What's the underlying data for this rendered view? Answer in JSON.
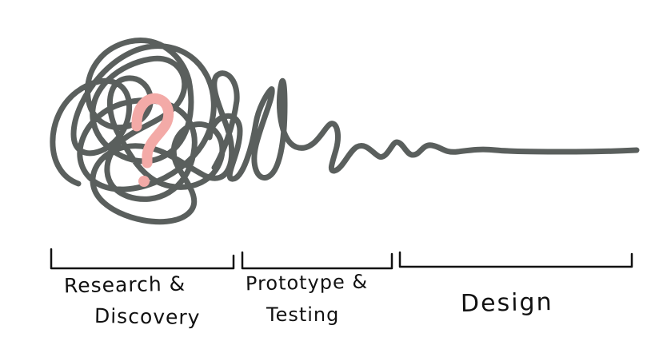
{
  "diagram": {
    "scribble_color": "#5a5f5d",
    "question_mark": {
      "symbol": "?",
      "color": "#f3aaa7"
    },
    "bracket_color": "#111111",
    "stages": [
      {
        "name": "research",
        "lines": [
          "Research &",
          "Discovery"
        ]
      },
      {
        "name": "prototype",
        "lines": [
          "Prototype &",
          "Testing"
        ]
      },
      {
        "name": "design",
        "lines": [
          "Design"
        ]
      }
    ]
  }
}
